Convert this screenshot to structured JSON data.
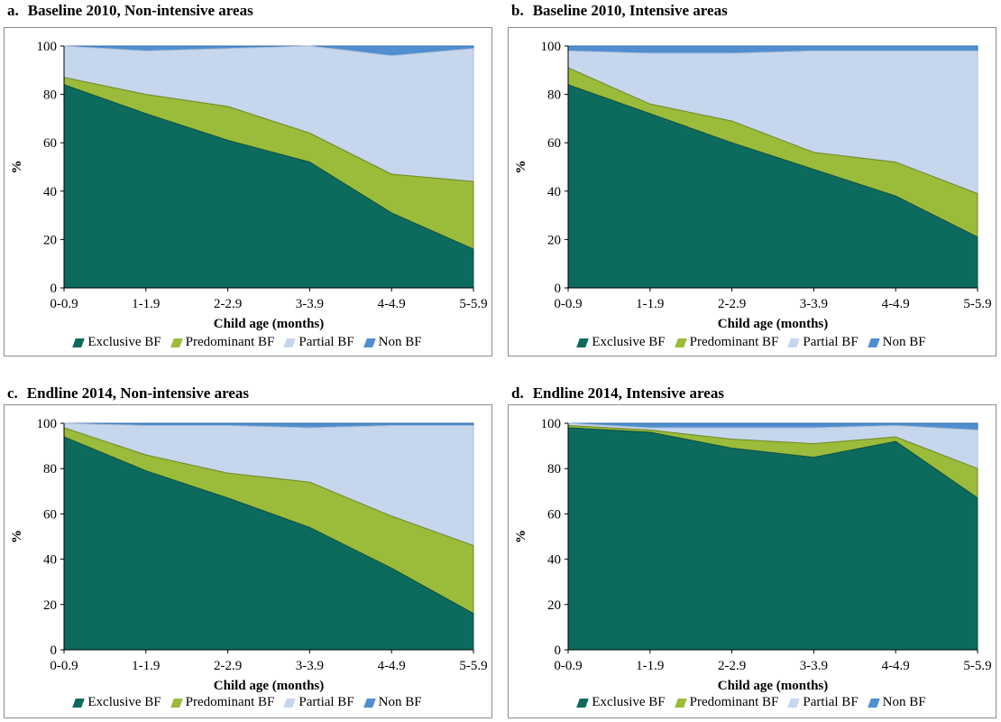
{
  "colors": {
    "exclusive": "#0d6b5e",
    "predominant": "#9bbb3a",
    "partial": "#c6d6ec",
    "non": "#4f8fd0"
  },
  "chart_data": [
    {
      "id": "a",
      "type": "area",
      "stacked": true,
      "panel_label": "a.",
      "title": "Baseline 2010,  Non-intensive areas",
      "xlabel": "Child age (months)",
      "ylabel": "%",
      "ylim": [
        0,
        100
      ],
      "yticks": [
        "0",
        "20",
        "40",
        "60",
        "80",
        "100"
      ],
      "categories": [
        "0-0.9",
        "1-1.9",
        "2-2.9",
        "3-3.9",
        "4-4.9",
        "5-5.9"
      ],
      "legend_position": "bottom",
      "series": [
        {
          "name": "Exclusive BF",
          "values": [
            84,
            72,
            61,
            52,
            31,
            16
          ]
        },
        {
          "name": "Predominant BF",
          "values": [
            3,
            8,
            14,
            12,
            16,
            28
          ]
        },
        {
          "name": "Partial BF",
          "values": [
            13,
            18,
            24,
            36,
            49,
            55
          ]
        },
        {
          "name": "Non BF",
          "values": [
            0,
            2,
            1,
            0,
            4,
            1
          ]
        }
      ]
    },
    {
      "id": "b",
      "type": "area",
      "stacked": true,
      "panel_label": "b.",
      "title": "Baseline 2010, Intensive areas",
      "xlabel": "Child age (months)",
      "ylabel": "%",
      "ylim": [
        0,
        100
      ],
      "yticks": [
        "0",
        "20",
        "40",
        "60",
        "80",
        "100"
      ],
      "categories": [
        "0-0.9",
        "1-1.9",
        "2-2.9",
        "3-3.9",
        "4-4.9",
        "5-5.9"
      ],
      "legend_position": "bottom",
      "series": [
        {
          "name": "Exclusive BF",
          "values": [
            84,
            72,
            60,
            49,
            38,
            21
          ]
        },
        {
          "name": "Predominant BF",
          "values": [
            7,
            4,
            9,
            7,
            14,
            18
          ]
        },
        {
          "name": "Partial BF",
          "values": [
            7,
            21,
            28,
            42,
            46,
            59
          ]
        },
        {
          "name": "Non BF",
          "values": [
            2,
            3,
            3,
            2,
            2,
            2
          ]
        }
      ]
    },
    {
      "id": "c",
      "type": "area",
      "stacked": true,
      "panel_label": "c.",
      "title": "Endline 2014, Non-intensive areas",
      "xlabel": "Child age (months)",
      "ylabel": "%",
      "ylim": [
        0,
        100
      ],
      "yticks": [
        "0",
        "20",
        "40",
        "60",
        "80",
        "100"
      ],
      "categories": [
        "0-0.9",
        "1-1.9",
        "2-2.9",
        "3-3.9",
        "4-4.9",
        "5-5.9"
      ],
      "legend_position": "bottom",
      "series": [
        {
          "name": "Exclusive BF",
          "values": [
            94,
            79,
            67,
            54,
            36,
            16
          ]
        },
        {
          "name": "Predominant BF",
          "values": [
            4,
            7,
            11,
            20,
            23,
            30
          ]
        },
        {
          "name": "Partial BF",
          "values": [
            2,
            13,
            21,
            24,
            40,
            53
          ]
        },
        {
          "name": "Non BF",
          "values": [
            0,
            1,
            1,
            2,
            1,
            1
          ]
        }
      ]
    },
    {
      "id": "d",
      "type": "area",
      "stacked": true,
      "panel_label": "d.",
      "title": "Endline 2014, Intensive areas",
      "xlabel": "Child age (months)",
      "ylabel": "%",
      "ylim": [
        0,
        100
      ],
      "yticks": [
        "0",
        "20",
        "40",
        "60",
        "80",
        "100"
      ],
      "categories": [
        "0-0.9",
        "1-1.9",
        "2-2.9",
        "3-3.9",
        "4-4.9",
        "5-5.9"
      ],
      "legend_position": "bottom",
      "series": [
        {
          "name": "Exclusive BF",
          "values": [
            98,
            96,
            89,
            85,
            92,
            67
          ]
        },
        {
          "name": "Predominant BF",
          "values": [
            1,
            1,
            4,
            6,
            2,
            13
          ]
        },
        {
          "name": "Partial BF",
          "values": [
            1,
            1,
            5,
            7,
            5,
            17
          ]
        },
        {
          "name": "Non BF",
          "values": [
            0,
            2,
            2,
            2,
            1,
            3
          ]
        }
      ]
    }
  ]
}
